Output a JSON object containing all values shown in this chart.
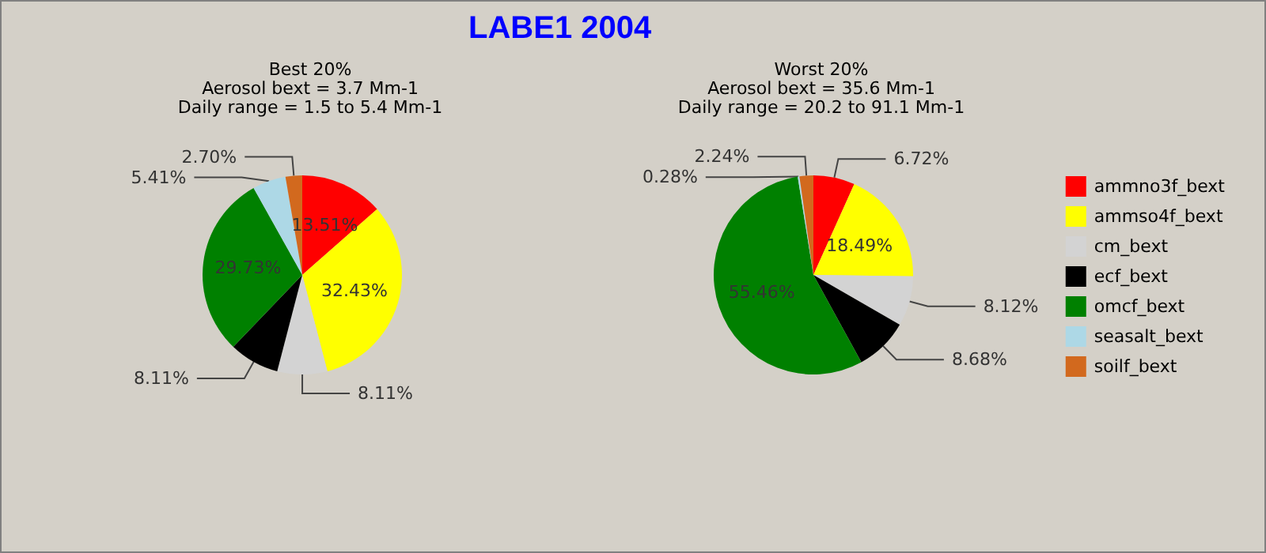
{
  "chart_data": [
    {
      "type": "pie",
      "title": "LABE1 2004",
      "subtitle": "Best 20%\nAerosol bext = 3.7 Mm-1\nDaily range = 1.5 to 5.4 Mm-1",
      "categories": [
        null,
        null,
        null,
        null,
        null,
        null,
        null
      ],
      "values": [
        13.51,
        32.43,
        8.11,
        8.11,
        29.73,
        5.41,
        2.7
      ],
      "value_labels": [
        "13.51%",
        "32.43%",
        "8.11%",
        "8.11%",
        "29.73%",
        "5.41%",
        "2.70%"
      ],
      "colors": [
        "#ff0000",
        "#ffff00",
        "#d3d3d3",
        "#000000",
        "#008000",
        "#add8e6",
        "#d2691e"
      ]
    },
    {
      "type": "pie",
      "subtitle": "Worst 20%\nAerosol bext = 35.6 Mm-1\nDaily range = 20.2 to 91.1 Mm-1",
      "categories": [
        "ammno3f_bext",
        "ammso4f_bext",
        "cm_bext",
        "ecf_bext",
        "omcf_bext",
        "seasalt_bext",
        "soilf_bext"
      ],
      "values": [
        6.72,
        18.49,
        8.12,
        8.68,
        55.46,
        0.28,
        2.24
      ],
      "value_labels": [
        "6.72%",
        "18.49%",
        "8.12%",
        "8.68%",
        "55.46%",
        "0.28%",
        "2.24%"
      ],
      "colors": [
        "#ff0000",
        "#ffff00",
        "#d3d3d3",
        "#000000",
        "#008000",
        "#add8e6",
        "#d2691e"
      ],
      "legend": "right"
    }
  ]
}
